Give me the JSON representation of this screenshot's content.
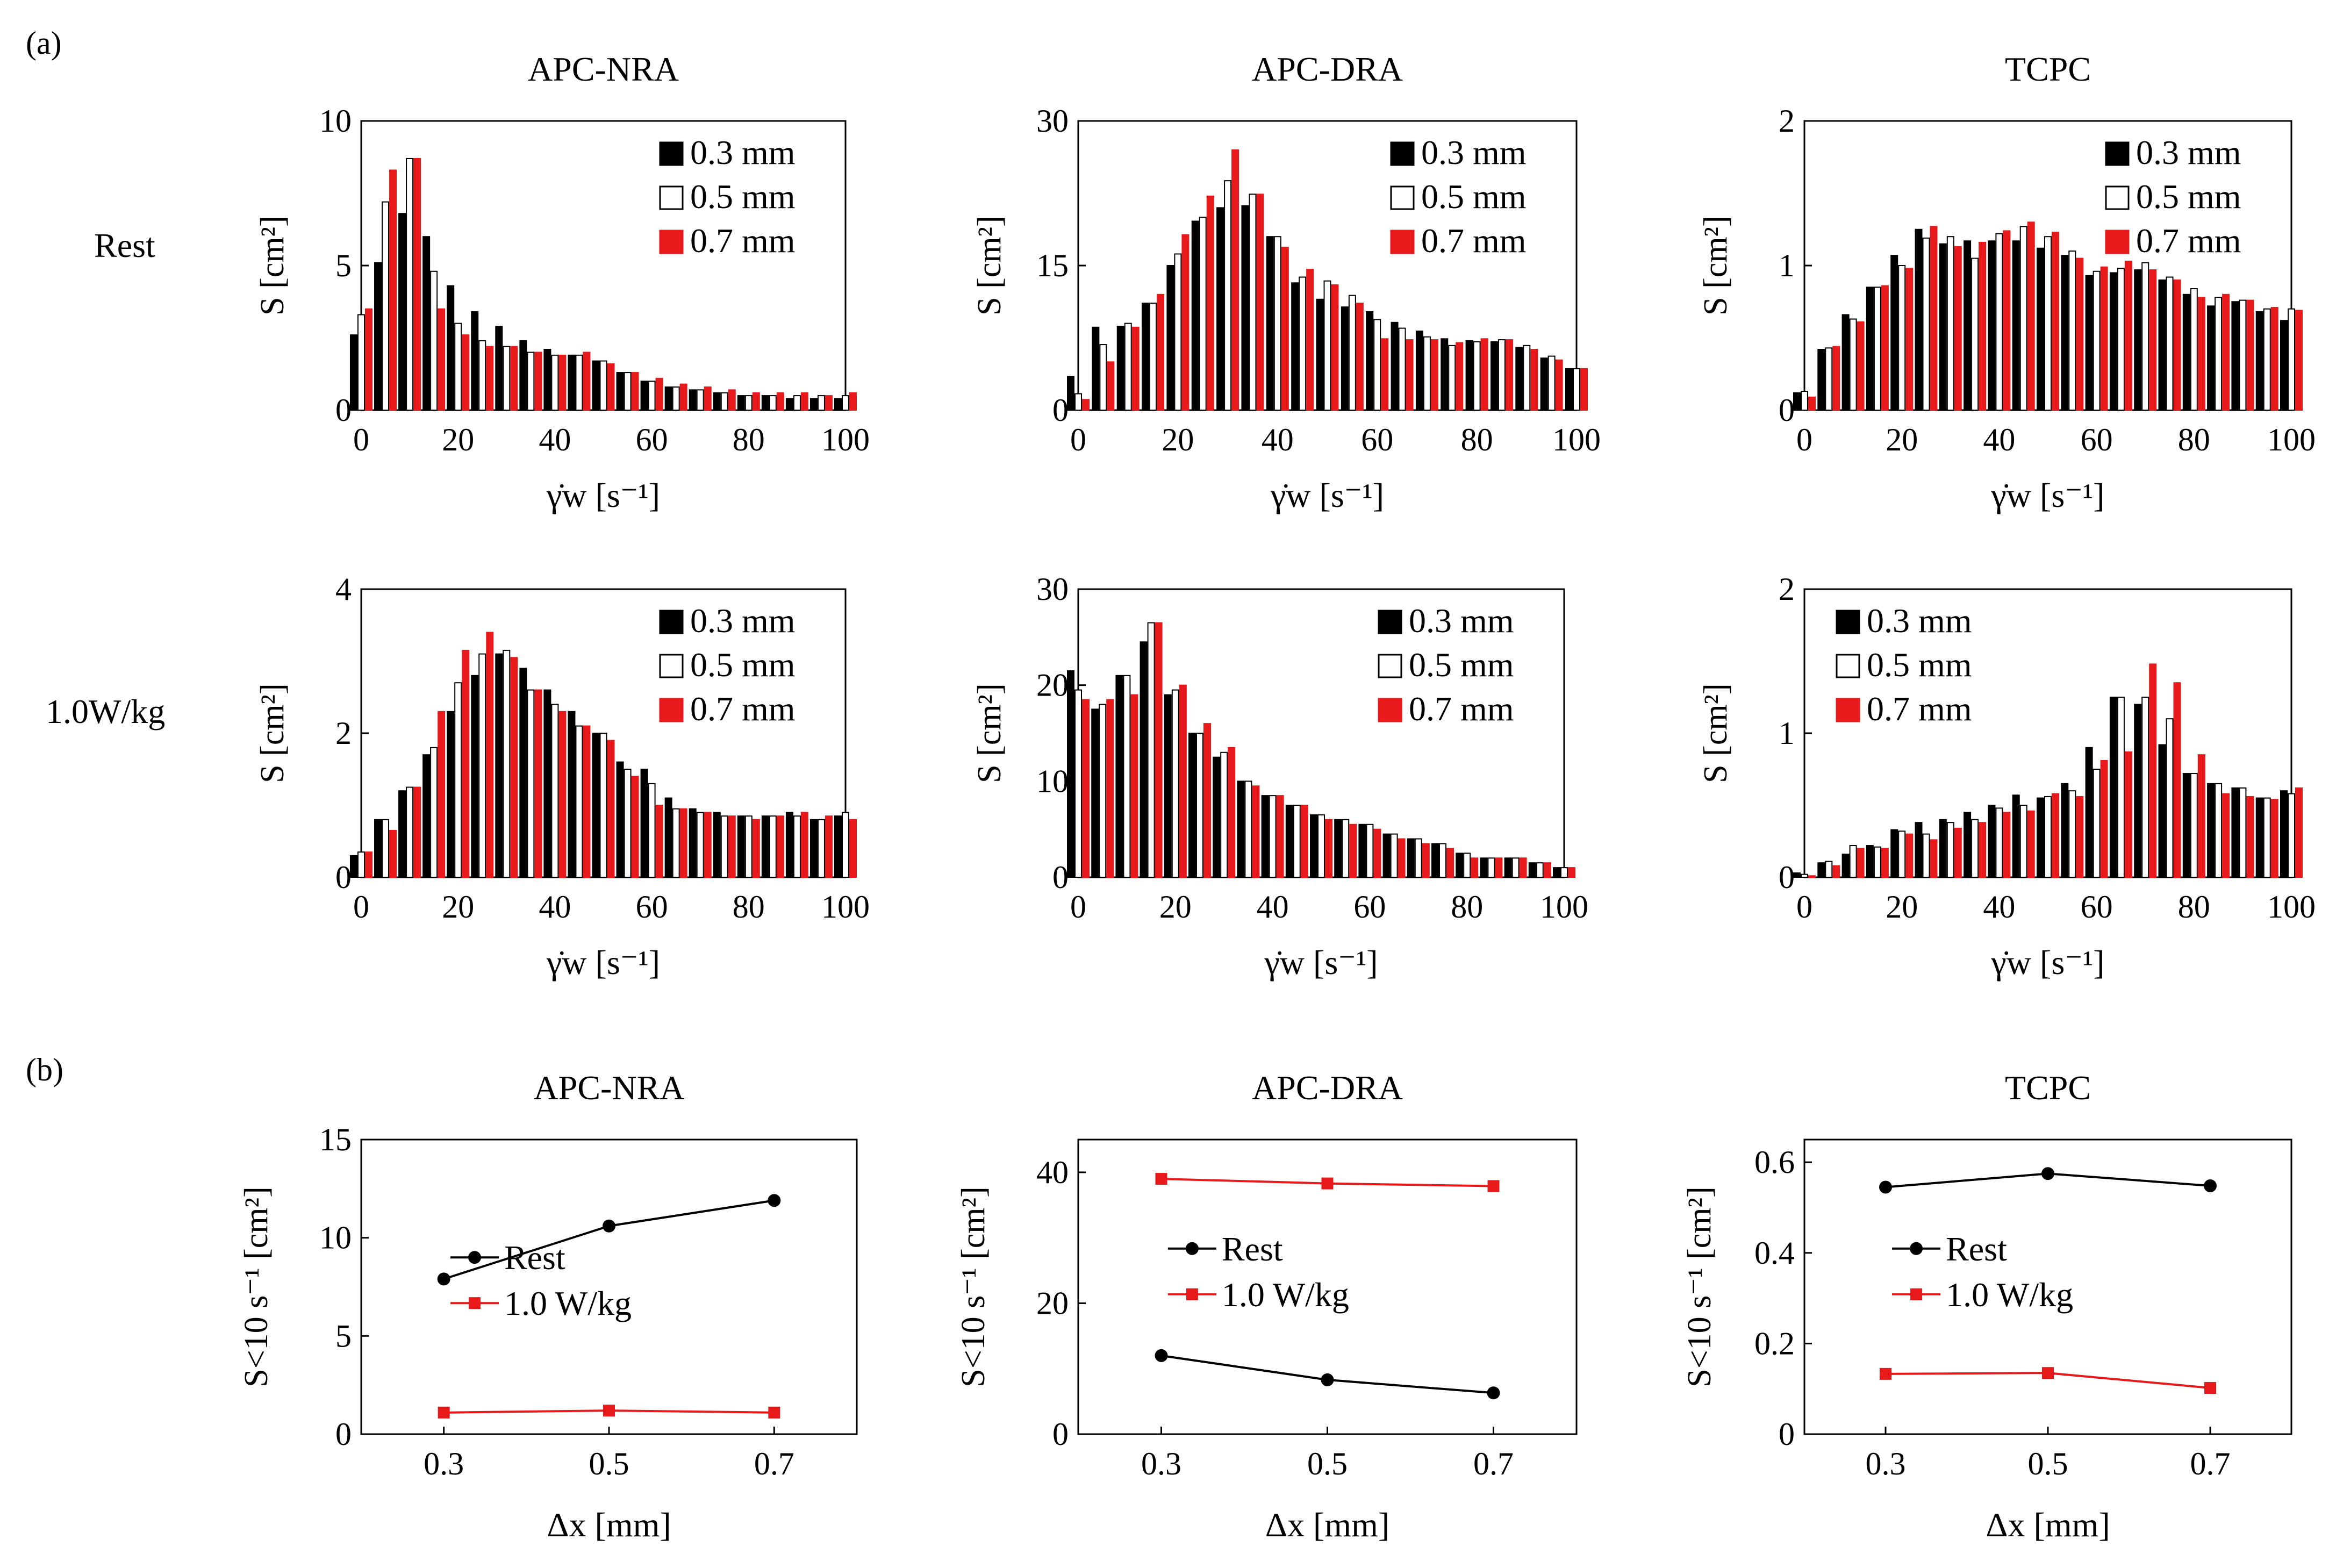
{
  "figure": {
    "panel_a_label": "(a)",
    "panel_b_label": "(b)",
    "row_labels": [
      "Rest",
      "1.0W/kg"
    ],
    "colors": {
      "black": "#000000",
      "white": "#ffffff",
      "red": "#e8191b"
    }
  },
  "chart_data": [
    {
      "type": "bar",
      "panel": "a",
      "row": 0,
      "col": 0,
      "title": "APC-NRA",
      "xlabel": "γ̇w [s⁻¹]",
      "ylabel": "S [cm²]",
      "xlim": [
        0,
        100
      ],
      "ylim": [
        0,
        10
      ],
      "yticks": [
        0,
        5,
        10
      ],
      "xticks": [
        0,
        20,
        40,
        60,
        80,
        100
      ],
      "legend_position": "top-right",
      "x": [
        0,
        5,
        10,
        15,
        20,
        25,
        30,
        35,
        40,
        45,
        50,
        55,
        60,
        65,
        70,
        75,
        80,
        85,
        90,
        95,
        100
      ],
      "series": [
        {
          "name": "0.3 mm",
          "style": "black",
          "values": [
            2.6,
            5.1,
            6.8,
            6.0,
            4.3,
            3.4,
            2.9,
            2.4,
            2.1,
            1.9,
            1.7,
            1.3,
            1.0,
            0.8,
            0.7,
            0.6,
            0.5,
            0.5,
            0.4,
            0.4,
            0.4
          ]
        },
        {
          "name": "0.5 mm",
          "style": "white",
          "values": [
            3.3,
            7.2,
            8.7,
            4.8,
            3.0,
            2.4,
            2.2,
            2.0,
            1.9,
            1.9,
            1.7,
            1.3,
            1.0,
            0.8,
            0.7,
            0.6,
            0.5,
            0.5,
            0.5,
            0.5,
            0.5
          ]
        },
        {
          "name": "0.7 mm",
          "style": "red",
          "values": [
            3.5,
            8.3,
            8.7,
            3.5,
            2.6,
            2.2,
            2.2,
            2.0,
            1.9,
            2.0,
            1.6,
            1.3,
            1.1,
            0.9,
            0.8,
            0.7,
            0.6,
            0.6,
            0.6,
            0.5,
            0.6
          ]
        }
      ]
    },
    {
      "type": "bar",
      "panel": "a",
      "row": 0,
      "col": 1,
      "title": "APC-DRA",
      "xlabel": "γ̇w [s⁻¹]",
      "ylabel": "S [cm²]",
      "xlim": [
        0,
        100
      ],
      "ylim": [
        0,
        30
      ],
      "yticks": [
        0,
        15,
        30
      ],
      "xticks": [
        0,
        20,
        40,
        60,
        80,
        100
      ],
      "legend_position": "top-right",
      "x": [
        0,
        5,
        10,
        15,
        20,
        25,
        30,
        35,
        40,
        45,
        50,
        55,
        60,
        65,
        70,
        75,
        80,
        85,
        90,
        95,
        100
      ],
      "series": [
        {
          "name": "0.3 mm",
          "style": "black",
          "values": [
            3.5,
            8.6,
            8.7,
            11.1,
            15.0,
            19.6,
            21.0,
            21.2,
            18.0,
            13.2,
            11.5,
            10.7,
            10.2,
            9.1,
            8.2,
            7.4,
            7.2,
            7.1,
            6.5,
            5.4,
            4.3
          ]
        },
        {
          "name": "0.5 mm",
          "style": "white",
          "values": [
            1.7,
            6.8,
            9.0,
            11.1,
            16.2,
            20.0,
            23.8,
            22.4,
            18.0,
            13.8,
            13.4,
            11.9,
            9.4,
            8.5,
            7.6,
            6.7,
            7.1,
            7.3,
            6.7,
            5.6,
            4.3
          ]
        },
        {
          "name": "0.7 mm",
          "style": "red",
          "values": [
            1.1,
            5.0,
            8.6,
            12.0,
            18.2,
            22.2,
            27.0,
            22.4,
            16.9,
            14.6,
            13.0,
            11.1,
            7.4,
            7.3,
            7.3,
            7.0,
            7.4,
            7.3,
            6.3,
            5.2,
            4.3
          ]
        }
      ]
    },
    {
      "type": "bar",
      "panel": "a",
      "row": 0,
      "col": 2,
      "title": "TCPC",
      "xlabel": "γ̇w [s⁻¹]",
      "ylabel": "S [cm²]",
      "xlim": [
        0,
        100
      ],
      "ylim": [
        0,
        2
      ],
      "yticks": [
        0,
        1,
        2
      ],
      "xticks": [
        0,
        20,
        40,
        60,
        80,
        100
      ],
      "legend_position": "top-right",
      "x": [
        0,
        5,
        10,
        15,
        20,
        25,
        30,
        35,
        40,
        45,
        50,
        55,
        60,
        65,
        70,
        75,
        80,
        85,
        90,
        95,
        100
      ],
      "series": [
        {
          "name": "0.3 mm",
          "style": "black",
          "values": [
            0.12,
            0.42,
            0.66,
            0.85,
            1.07,
            1.25,
            1.15,
            1.17,
            1.17,
            1.17,
            1.12,
            1.07,
            0.93,
            0.95,
            0.97,
            0.9,
            0.8,
            0.72,
            0.75,
            0.68,
            0.62
          ]
        },
        {
          "name": "0.5 mm",
          "style": "white",
          "values": [
            0.13,
            0.43,
            0.63,
            0.85,
            1.0,
            1.19,
            1.2,
            1.05,
            1.22,
            1.27,
            1.2,
            1.1,
            0.96,
            0.98,
            1.02,
            0.92,
            0.84,
            0.78,
            0.76,
            0.7,
            0.7
          ]
        },
        {
          "name": "0.7 mm",
          "style": "red",
          "values": [
            0.09,
            0.44,
            0.61,
            0.86,
            0.98,
            1.27,
            1.13,
            1.16,
            1.24,
            1.3,
            1.23,
            1.05,
            0.99,
            1.03,
            0.97,
            0.9,
            0.78,
            0.8,
            0.76,
            0.71,
            0.69
          ]
        }
      ]
    },
    {
      "type": "bar",
      "panel": "a",
      "row": 1,
      "col": 0,
      "title": "",
      "xlabel": "γ̇w [s⁻¹]",
      "ylabel": "S [cm²]",
      "xlim": [
        0,
        100
      ],
      "ylim": [
        0,
        4
      ],
      "yticks": [
        0,
        2,
        4
      ],
      "xticks": [
        0,
        20,
        40,
        60,
        80,
        100
      ],
      "legend_position": "top-right",
      "x": [
        0,
        5,
        10,
        15,
        20,
        25,
        30,
        35,
        40,
        45,
        50,
        55,
        60,
        65,
        70,
        75,
        80,
        85,
        90,
        95,
        100
      ],
      "series": [
        {
          "name": "0.3 mm",
          "style": "black",
          "values": [
            0.3,
            0.8,
            1.2,
            1.7,
            2.3,
            2.8,
            3.1,
            2.9,
            2.6,
            2.3,
            2.0,
            1.6,
            1.5,
            1.1,
            0.95,
            0.9,
            0.85,
            0.85,
            0.9,
            0.8,
            0.85
          ]
        },
        {
          "name": "0.5 mm",
          "style": "white",
          "values": [
            0.35,
            0.8,
            1.25,
            1.8,
            2.7,
            3.1,
            3.15,
            2.6,
            2.4,
            2.1,
            2.0,
            1.5,
            1.3,
            0.95,
            0.9,
            0.85,
            0.85,
            0.85,
            0.85,
            0.8,
            0.9
          ]
        },
        {
          "name": "0.7 mm",
          "style": "red",
          "values": [
            0.35,
            0.65,
            1.25,
            2.3,
            3.15,
            3.4,
            3.05,
            2.6,
            2.3,
            2.1,
            1.9,
            1.4,
            1.0,
            0.95,
            0.9,
            0.85,
            0.8,
            0.85,
            0.9,
            0.85,
            0.8
          ]
        }
      ]
    },
    {
      "type": "bar",
      "panel": "a",
      "row": 1,
      "col": 1,
      "title": "",
      "xlabel": "γ̇w [s⁻¹]",
      "ylabel": "S [cm²]",
      "xlim": [
        0,
        100
      ],
      "ylim": [
        0,
        30
      ],
      "yticks": [
        0,
        10,
        20,
        30
      ],
      "xticks": [
        0,
        20,
        40,
        60,
        80,
        100
      ],
      "legend_position": "top-right",
      "x": [
        0,
        5,
        10,
        15,
        20,
        25,
        30,
        35,
        40,
        45,
        50,
        55,
        60,
        65,
        70,
        75,
        80,
        85,
        90,
        95,
        100
      ],
      "series": [
        {
          "name": "0.3 mm",
          "style": "black",
          "values": [
            21.5,
            17.5,
            21.0,
            24.5,
            19.0,
            15.0,
            12.5,
            10.0,
            8.5,
            7.5,
            6.5,
            6.0,
            5.5,
            4.5,
            4.0,
            3.5,
            2.5,
            2.0,
            2.0,
            1.5,
            1.0
          ]
        },
        {
          "name": "0.5 mm",
          "style": "white",
          "values": [
            19.5,
            18.0,
            21.0,
            26.5,
            19.5,
            15.0,
            13.0,
            10.0,
            8.5,
            7.5,
            6.5,
            6.0,
            5.5,
            4.5,
            4.0,
            3.5,
            2.5,
            2.0,
            2.0,
            1.5,
            1.0
          ]
        },
        {
          "name": "0.7 mm",
          "style": "red",
          "values": [
            18.5,
            18.5,
            19.0,
            26.5,
            20.0,
            16.0,
            13.5,
            9.5,
            8.5,
            7.5,
            6.0,
            5.5,
            5.0,
            4.0,
            3.5,
            3.0,
            2.0,
            2.0,
            2.0,
            1.5,
            1.0
          ]
        }
      ]
    },
    {
      "type": "bar",
      "panel": "a",
      "row": 1,
      "col": 2,
      "title": "",
      "xlabel": "γ̇w [s⁻¹]",
      "ylabel": "S [cm²]",
      "xlim": [
        0,
        100
      ],
      "ylim": [
        0,
        2
      ],
      "yticks": [
        0,
        1,
        2
      ],
      "xticks": [
        0,
        20,
        40,
        60,
        80,
        100
      ],
      "legend_position": "top-left",
      "x": [
        0,
        5,
        10,
        15,
        20,
        25,
        30,
        35,
        40,
        45,
        50,
        55,
        60,
        65,
        70,
        75,
        80,
        85,
        90,
        95,
        100
      ],
      "series": [
        {
          "name": "0.3 mm",
          "style": "black",
          "values": [
            0.03,
            0.1,
            0.16,
            0.22,
            0.33,
            0.38,
            0.4,
            0.45,
            0.5,
            0.57,
            0.55,
            0.65,
            0.9,
            1.25,
            1.2,
            0.92,
            0.72,
            0.65,
            0.62,
            0.55,
            0.6
          ]
        },
        {
          "name": "0.5 mm",
          "style": "white",
          "values": [
            0.02,
            0.11,
            0.22,
            0.21,
            0.32,
            0.3,
            0.38,
            0.4,
            0.48,
            0.5,
            0.56,
            0.6,
            0.75,
            1.25,
            1.25,
            1.1,
            0.72,
            0.65,
            0.62,
            0.55,
            0.58
          ]
        },
        {
          "name": "0.7 mm",
          "style": "red",
          "values": [
            0.01,
            0.08,
            0.2,
            0.2,
            0.3,
            0.26,
            0.34,
            0.38,
            0.45,
            0.46,
            0.58,
            0.56,
            0.81,
            0.87,
            1.48,
            1.35,
            0.85,
            0.58,
            0.56,
            0.54,
            0.62
          ]
        }
      ]
    },
    {
      "type": "line",
      "panel": "b",
      "col": 0,
      "title": "APC-NRA",
      "xlabel": "Δx [mm]",
      "ylabel": "S<10 s⁻¹ [cm²]",
      "xlim": [
        0.2,
        0.8
      ],
      "ylim": [
        0,
        15
      ],
      "yticks": [
        0,
        5,
        10,
        15
      ],
      "xticks": [
        0.3,
        0.5,
        0.7
      ],
      "legend_position": "center",
      "x": [
        0.3,
        0.5,
        0.7
      ],
      "series": [
        {
          "name": "Rest",
          "style": "black",
          "values": [
            7.9,
            10.6,
            11.9
          ]
        },
        {
          "name": "1.0 W/kg",
          "style": "red",
          "values": [
            1.1,
            1.2,
            1.1
          ]
        }
      ]
    },
    {
      "type": "line",
      "panel": "b",
      "col": 1,
      "title": "APC-DRA",
      "xlabel": "Δx [mm]",
      "ylabel": "S<10 s⁻¹ [cm²]",
      "xlim": [
        0.2,
        0.8
      ],
      "ylim": [
        0,
        45
      ],
      "yticks": [
        0,
        20,
        40
      ],
      "xticks": [
        0.3,
        0.5,
        0.7
      ],
      "legend_position": "center",
      "x": [
        0.3,
        0.5,
        0.7
      ],
      "series": [
        {
          "name": "Rest",
          "style": "black",
          "values": [
            12.0,
            8.3,
            6.3
          ]
        },
        {
          "name": "1.0 W/kg",
          "style": "red",
          "values": [
            39.0,
            38.3,
            37.9
          ]
        }
      ]
    },
    {
      "type": "line",
      "panel": "b",
      "col": 2,
      "title": "TCPC",
      "xlabel": "Δx [mm]",
      "ylabel": "S<10 s⁻¹ [cm²]",
      "xlim": [
        0.2,
        0.8
      ],
      "ylim": [
        0,
        0.65
      ],
      "yticks": [
        0,
        0.2,
        0.4,
        0.6
      ],
      "xticks": [
        0.3,
        0.5,
        0.7
      ],
      "legend_position": "center",
      "x": [
        0.3,
        0.5,
        0.7
      ],
      "series": [
        {
          "name": "Rest",
          "style": "black",
          "values": [
            0.545,
            0.575,
            0.548
          ]
        },
        {
          "name": "1.0 W/kg",
          "style": "red",
          "values": [
            0.133,
            0.135,
            0.102
          ]
        }
      ]
    }
  ]
}
